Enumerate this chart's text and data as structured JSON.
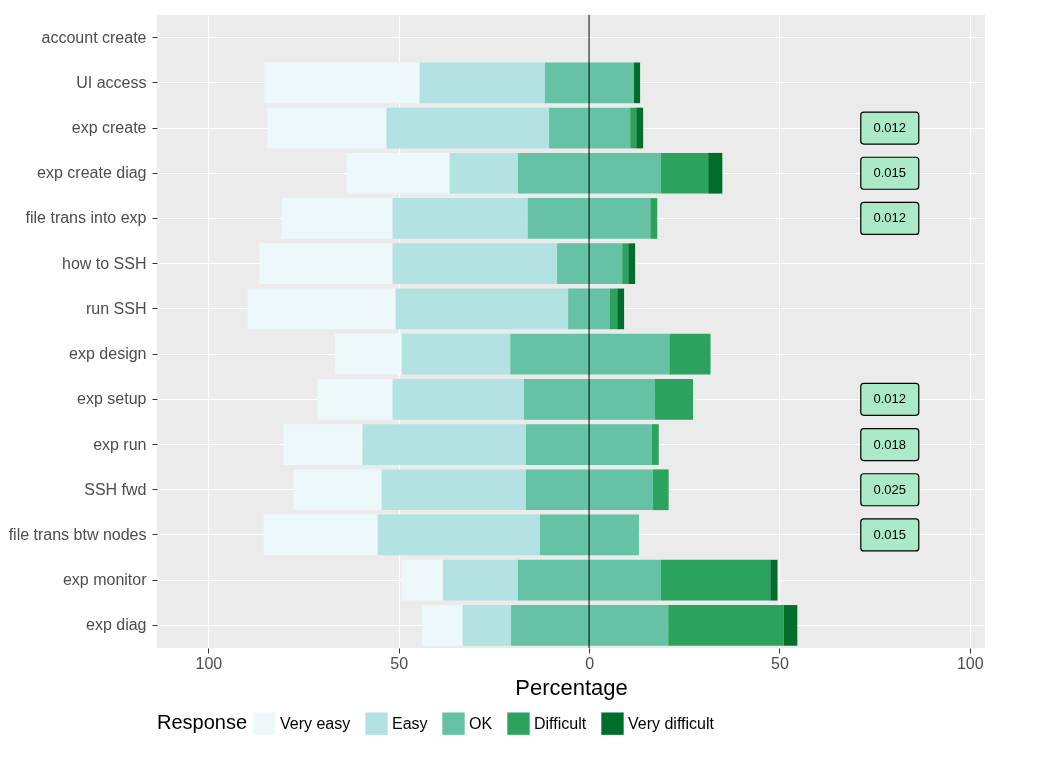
{
  "chart_data": {
    "type": "bar",
    "orientation": "horizontal",
    "xlabel": "Percentage",
    "legend_title": "Response",
    "legend": "bottom",
    "grid": true,
    "categories": [
      "account create",
      "UI access",
      "exp create",
      "exp create diag",
      "file trans into exp",
      "how to SSH",
      "run SSH",
      "exp design",
      "exp setup",
      "exp run",
      "SSH fwd",
      "file trans btw nodes",
      "exp monitor",
      "exp diag"
    ],
    "xlim": [
      -113.5,
      104
    ],
    "xticks": [
      {
        "value": -100,
        "label": "100"
      },
      {
        "value": -50,
        "label": "50"
      },
      0,
      50,
      100
    ],
    "series": [
      {
        "name": "Very easy",
        "color": "#edf8fb",
        "base": [
          null,
          -85.3,
          -84.5,
          -63.7,
          -80.8,
          -86.6,
          -89.7,
          -66.8,
          -71.3,
          -80.3,
          -77.6,
          -85.5,
          -49.2,
          -43.9
        ],
        "values": [
          null,
          40.8,
          31.3,
          27.1,
          29.2,
          35,
          38.9,
          17.6,
          19.7,
          20.8,
          23.1,
          30,
          10.8,
          10.7
        ]
      },
      {
        "name": "Easy",
        "color": "#b2e2e2",
        "base": [
          null,
          -44.5,
          -53.2,
          -36.6,
          -51.6,
          -51.6,
          -50.8,
          -49.2,
          -51.6,
          -59.5,
          -54.5,
          -55.5,
          -38.4,
          -33.2
        ],
        "values": [
          null,
          32.9,
          42.7,
          17.9,
          35.5,
          43.2,
          45.3,
          28.5,
          34.5,
          42.9,
          37.9,
          42.6,
          19.7,
          12.7
        ]
      },
      {
        "name": "OK",
        "color": "#66c2a4",
        "base": [
          null,
          -11.6,
          -10.5,
          -18.7,
          -16.1,
          -8.4,
          -5.5,
          -20.7,
          -17.1,
          -16.6,
          -16.6,
          -12.9,
          -18.7,
          -20.5
        ],
        "values": [
          null,
          23.4,
          21.3,
          37.6,
          32.2,
          17.1,
          11,
          41.8,
          34.4,
          33.1,
          33.4,
          26,
          37.6,
          41.3
        ]
      },
      {
        "name": "Difficult",
        "color": "#2ca25f",
        "base": [
          null,
          null,
          10.8,
          18.9,
          16.1,
          8.7,
          5.5,
          21.1,
          17.3,
          16.5,
          16.8,
          null,
          18.9,
          20.8
        ],
        "values": [
          null,
          null,
          1.6,
          12.4,
          1.8,
          1.6,
          1.9,
          10.8,
          10,
          1.8,
          4.1,
          null,
          28.7,
          30.3
        ]
      },
      {
        "name": "Very difficult",
        "color": "#006d2c",
        "base": [
          null,
          11.8,
          12.4,
          31.3,
          null,
          10.3,
          7.4,
          null,
          null,
          null,
          null,
          null,
          47.6,
          51.1
        ],
        "values": [
          null,
          1.6,
          1.8,
          3.7,
          null,
          1.8,
          1.8,
          null,
          null,
          null,
          null,
          null,
          1.9,
          3.6
        ]
      }
    ],
    "ref_lines": [
      {
        "axis": "x",
        "value": 0,
        "color": "#000000"
      }
    ],
    "annotations": [
      "0.012",
      "0.015",
      "0.012",
      "0.012",
      "0.018",
      "0.025",
      "0.015"
    ]
  }
}
